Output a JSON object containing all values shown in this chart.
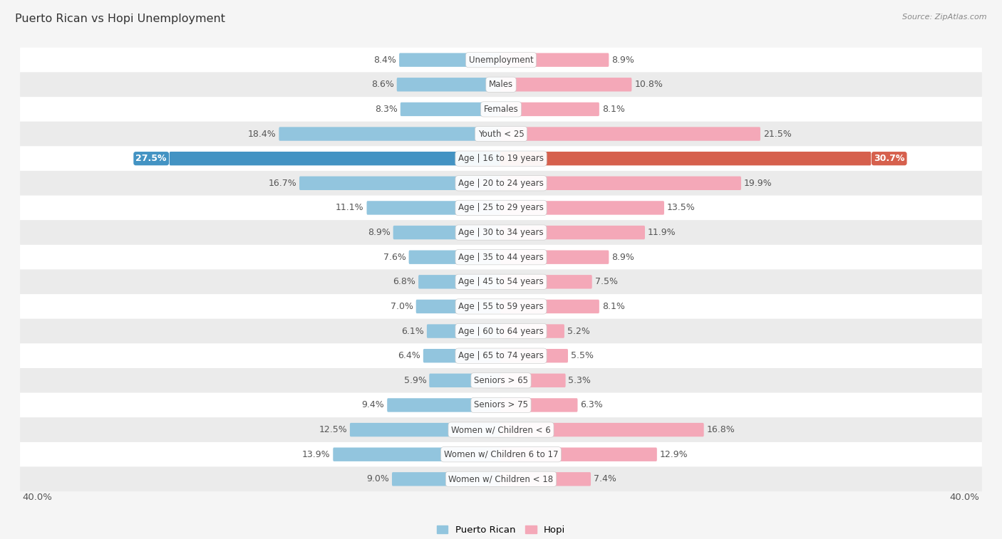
{
  "title": "Puerto Rican vs Hopi Unemployment",
  "source": "Source: ZipAtlas.com",
  "categories": [
    "Unemployment",
    "Males",
    "Females",
    "Youth < 25",
    "Age | 16 to 19 years",
    "Age | 20 to 24 years",
    "Age | 25 to 29 years",
    "Age | 30 to 34 years",
    "Age | 35 to 44 years",
    "Age | 45 to 54 years",
    "Age | 55 to 59 years",
    "Age | 60 to 64 years",
    "Age | 65 to 74 years",
    "Seniors > 65",
    "Seniors > 75",
    "Women w/ Children < 6",
    "Women w/ Children 6 to 17",
    "Women w/ Children < 18"
  ],
  "puerto_rican": [
    8.4,
    8.6,
    8.3,
    18.4,
    27.5,
    16.7,
    11.1,
    8.9,
    7.6,
    6.8,
    7.0,
    6.1,
    6.4,
    5.9,
    9.4,
    12.5,
    13.9,
    9.0
  ],
  "hopi": [
    8.9,
    10.8,
    8.1,
    21.5,
    30.7,
    19.9,
    13.5,
    11.9,
    8.9,
    7.5,
    8.1,
    5.2,
    5.5,
    5.3,
    6.3,
    16.8,
    12.9,
    7.4
  ],
  "puerto_rican_color": "#92c5de",
  "hopi_color": "#f4a8b8",
  "highlight_puerto_rican_color": "#4393c3",
  "highlight_hopi_color": "#d6604d",
  "highlight_row": 4,
  "bar_height": 0.42,
  "background_color": "#f5f5f5",
  "row_bg_odd": "#ffffff",
  "row_bg_even": "#ebebeb",
  "xlim": 40.0,
  "label_fontsize": 9.0,
  "cat_fontsize": 8.5,
  "title_fontsize": 11.5,
  "source_fontsize": 8.0
}
